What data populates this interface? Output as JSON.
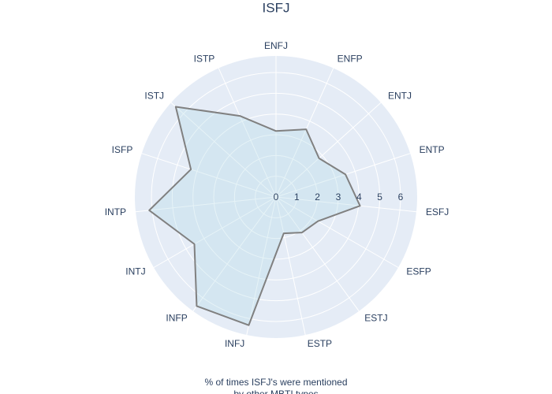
{
  "chart_data": {
    "type": "radar",
    "title": "ISFJ",
    "categories": [
      "ENFJ",
      "ENFP",
      "ENTJ",
      "ENTP",
      "ESFJ",
      "ESFP",
      "ESTJ",
      "ESTP",
      "INFJ",
      "INFP",
      "INTJ",
      "INTP",
      "ISFP",
      "ISTJ",
      "ISTP"
    ],
    "values": [
      3.18,
      3.57,
      2.79,
      3.52,
      4.07,
      2.33,
      2.12,
      1.79,
      6.32,
      6.5,
      4.54,
      6.14,
      4.31,
      6.5,
      4.28
    ],
    "color": "#808080",
    "fill_color": "rgba(173, 216, 230, 0.3)",
    "background": "#e5ecf6",
    "rotation": 90,
    "direction": "clockwise",
    "rlim": [
      0,
      6.8
    ],
    "rticks": [
      0,
      1,
      2,
      3,
      4,
      5,
      6
    ],
    "grid": true,
    "annotation": [
      "% of times ISFJ's were mentioned",
      "by other MBTI types"
    ]
  }
}
